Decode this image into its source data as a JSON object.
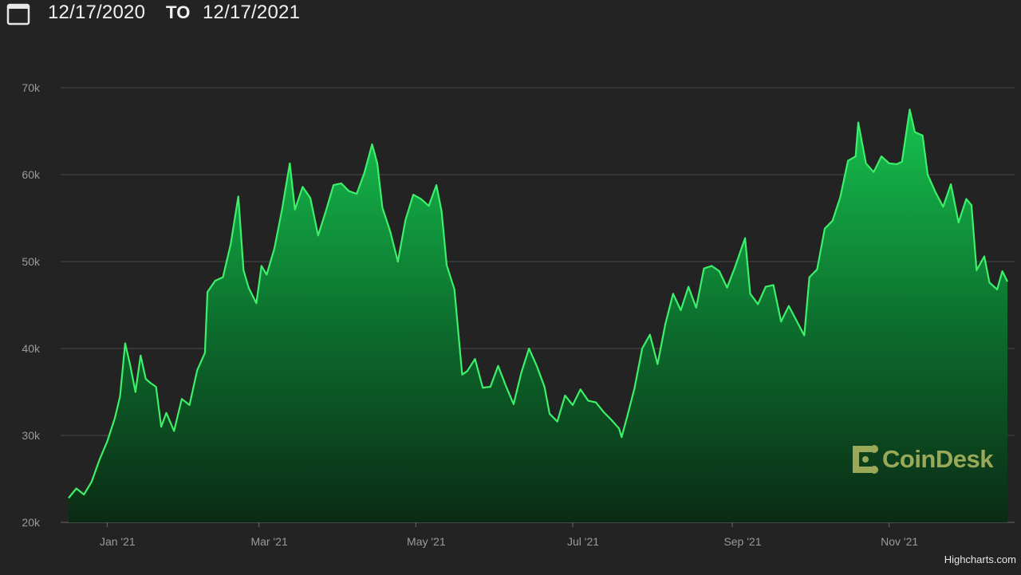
{
  "header": {
    "start_date": "12/17/2020",
    "separator": "TO",
    "end_date": "12/17/2021",
    "calendar_icon": "calendar-icon"
  },
  "credits": "Highcharts.com",
  "watermark": "CoinDesk",
  "colors": {
    "background": "#232323",
    "line": "#3df06a",
    "area_top": "#16c24e",
    "area_bottom": "#0b2a14",
    "grid": "#4a4a4a",
    "label": "#9a9a9a",
    "watermark": "#9aa85a"
  },
  "chart_data": {
    "type": "area",
    "title": "",
    "xlabel": "",
    "ylabel": "",
    "ylim": [
      20000,
      70000
    ],
    "xlim": [
      "2020-12-17",
      "2021-12-17"
    ],
    "grid": true,
    "y_ticks": [
      {
        "value": 20000,
        "label": "20k"
      },
      {
        "value": 30000,
        "label": "30k"
      },
      {
        "value": 40000,
        "label": "40k"
      },
      {
        "value": 50000,
        "label": "50k"
      },
      {
        "value": 60000,
        "label": "60k"
      },
      {
        "value": 70000,
        "label": "70k"
      }
    ],
    "x_ticks": [
      {
        "date": "2021-01-01",
        "label": "Jan '21"
      },
      {
        "date": "2021-03-01",
        "label": "Mar '21"
      },
      {
        "date": "2021-05-01",
        "label": "May '21"
      },
      {
        "date": "2021-07-01",
        "label": "Jul '21"
      },
      {
        "date": "2021-09-01",
        "label": "Sep '21"
      },
      {
        "date": "2021-11-01",
        "label": "Nov '21"
      }
    ],
    "series": [
      {
        "values": [
          [
            "2020-12-17",
            22800
          ],
          [
            "2020-12-20",
            23900
          ],
          [
            "2020-12-23",
            23200
          ],
          [
            "2020-12-26",
            24700
          ],
          [
            "2020-12-29",
            27200
          ],
          [
            "2021-01-01",
            29300
          ],
          [
            "2021-01-04",
            32000
          ],
          [
            "2021-01-06",
            34500
          ],
          [
            "2021-01-08",
            40600
          ],
          [
            "2021-01-10",
            38000
          ],
          [
            "2021-01-12",
            35000
          ],
          [
            "2021-01-14",
            39200
          ],
          [
            "2021-01-16",
            36500
          ],
          [
            "2021-01-18",
            36000
          ],
          [
            "2021-01-20",
            35600
          ],
          [
            "2021-01-22",
            31000
          ],
          [
            "2021-01-24",
            32600
          ],
          [
            "2021-01-27",
            30500
          ],
          [
            "2021-01-30",
            34200
          ],
          [
            "2021-02-02",
            33500
          ],
          [
            "2021-02-05",
            37500
          ],
          [
            "2021-02-08",
            39500
          ],
          [
            "2021-02-09",
            46500
          ],
          [
            "2021-02-12",
            47800
          ],
          [
            "2021-02-15",
            48200
          ],
          [
            "2021-02-18",
            52000
          ],
          [
            "2021-02-21",
            57500
          ],
          [
            "2021-02-23",
            49000
          ],
          [
            "2021-02-25",
            47000
          ],
          [
            "2021-02-28",
            45200
          ],
          [
            "2021-03-02",
            49500
          ],
          [
            "2021-03-04",
            48500
          ],
          [
            "2021-03-07",
            51500
          ],
          [
            "2021-03-10",
            56000
          ],
          [
            "2021-03-13",
            61300
          ],
          [
            "2021-03-15",
            56000
          ],
          [
            "2021-03-18",
            58600
          ],
          [
            "2021-03-21",
            57300
          ],
          [
            "2021-03-24",
            53000
          ],
          [
            "2021-03-27",
            55800
          ],
          [
            "2021-03-30",
            58800
          ],
          [
            "2021-04-02",
            59000
          ],
          [
            "2021-04-05",
            58100
          ],
          [
            "2021-04-08",
            57800
          ],
          [
            "2021-04-11",
            60200
          ],
          [
            "2021-04-14",
            63500
          ],
          [
            "2021-04-16",
            61300
          ],
          [
            "2021-04-18",
            56200
          ],
          [
            "2021-04-21",
            53500
          ],
          [
            "2021-04-24",
            50000
          ],
          [
            "2021-04-27",
            54800
          ],
          [
            "2021-04-30",
            57700
          ],
          [
            "2021-05-03",
            57200
          ],
          [
            "2021-05-06",
            56400
          ],
          [
            "2021-05-09",
            58800
          ],
          [
            "2021-05-11",
            55800
          ],
          [
            "2021-05-13",
            49600
          ],
          [
            "2021-05-16",
            46800
          ],
          [
            "2021-05-19",
            37000
          ],
          [
            "2021-05-21",
            37400
          ],
          [
            "2021-05-24",
            38800
          ],
          [
            "2021-05-27",
            35500
          ],
          [
            "2021-05-30",
            35600
          ],
          [
            "2021-06-02",
            38000
          ],
          [
            "2021-06-05",
            35700
          ],
          [
            "2021-06-08",
            33600
          ],
          [
            "2021-06-11",
            37200
          ],
          [
            "2021-06-14",
            40000
          ],
          [
            "2021-06-17",
            38000
          ],
          [
            "2021-06-20",
            35600
          ],
          [
            "2021-06-22",
            32500
          ],
          [
            "2021-06-25",
            31600
          ],
          [
            "2021-06-28",
            34600
          ],
          [
            "2021-07-01",
            33500
          ],
          [
            "2021-07-04",
            35300
          ],
          [
            "2021-07-07",
            34000
          ],
          [
            "2021-07-10",
            33800
          ],
          [
            "2021-07-13",
            32700
          ],
          [
            "2021-07-16",
            31800
          ],
          [
            "2021-07-19",
            30800
          ],
          [
            "2021-07-20",
            29800
          ],
          [
            "2021-07-22",
            32000
          ],
          [
            "2021-07-25",
            35400
          ],
          [
            "2021-07-28",
            40000
          ],
          [
            "2021-07-31",
            41600
          ],
          [
            "2021-08-03",
            38200
          ],
          [
            "2021-08-06",
            42800
          ],
          [
            "2021-08-09",
            46300
          ],
          [
            "2021-08-12",
            44400
          ],
          [
            "2021-08-15",
            47100
          ],
          [
            "2021-08-18",
            44700
          ],
          [
            "2021-08-21",
            49200
          ],
          [
            "2021-08-24",
            49500
          ],
          [
            "2021-08-27",
            48900
          ],
          [
            "2021-08-30",
            47000
          ],
          [
            "2021-09-02",
            49300
          ],
          [
            "2021-09-06",
            52700
          ],
          [
            "2021-09-08",
            46300
          ],
          [
            "2021-09-11",
            45100
          ],
          [
            "2021-09-14",
            47100
          ],
          [
            "2021-09-17",
            47300
          ],
          [
            "2021-09-20",
            43100
          ],
          [
            "2021-09-23",
            44900
          ],
          [
            "2021-09-26",
            43200
          ],
          [
            "2021-09-29",
            41500
          ],
          [
            "2021-10-01",
            48200
          ],
          [
            "2021-10-04",
            49100
          ],
          [
            "2021-10-07",
            53800
          ],
          [
            "2021-10-10",
            54700
          ],
          [
            "2021-10-13",
            57400
          ],
          [
            "2021-10-16",
            61600
          ],
          [
            "2021-10-19",
            62100
          ],
          [
            "2021-10-20",
            66000
          ],
          [
            "2021-10-23",
            61300
          ],
          [
            "2021-10-26",
            60300
          ],
          [
            "2021-10-29",
            62100
          ],
          [
            "2021-11-01",
            61300
          ],
          [
            "2021-11-04",
            61200
          ],
          [
            "2021-11-06",
            61500
          ],
          [
            "2021-11-09",
            67500
          ],
          [
            "2021-11-11",
            64900
          ],
          [
            "2021-11-14",
            64500
          ],
          [
            "2021-11-16",
            60000
          ],
          [
            "2021-11-19",
            58000
          ],
          [
            "2021-11-22",
            56300
          ],
          [
            "2021-11-25",
            58900
          ],
          [
            "2021-11-28",
            54500
          ],
          [
            "2021-12-01",
            57200
          ],
          [
            "2021-12-03",
            56500
          ],
          [
            "2021-12-05",
            49000
          ],
          [
            "2021-12-08",
            50600
          ],
          [
            "2021-12-10",
            47600
          ],
          [
            "2021-12-13",
            46800
          ],
          [
            "2021-12-15",
            48900
          ],
          [
            "2021-12-17",
            47700
          ]
        ]
      }
    ]
  }
}
